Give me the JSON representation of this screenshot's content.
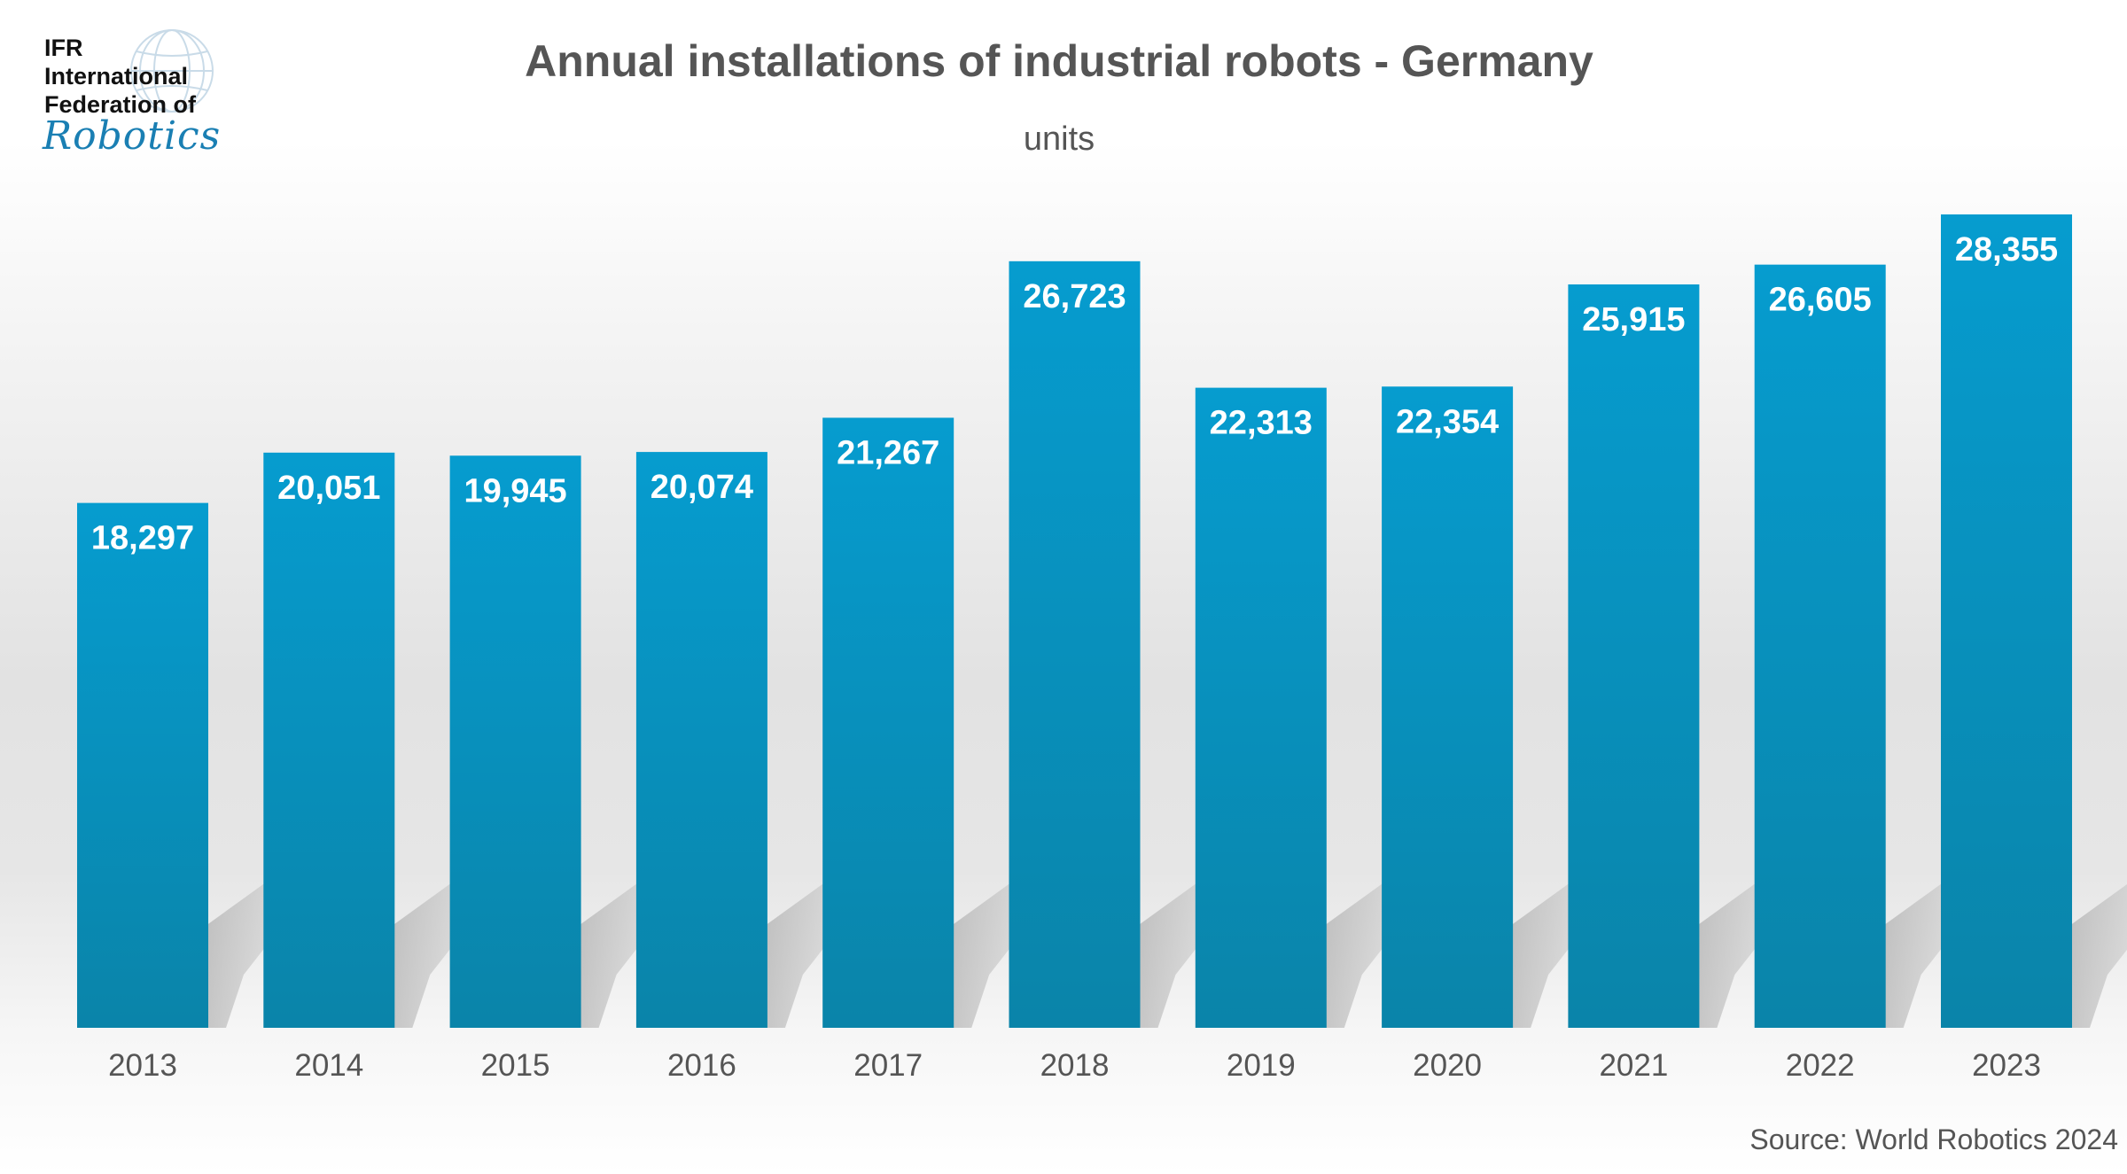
{
  "logo": {
    "line1": "IFR",
    "line2": "International",
    "line3": "Federation of",
    "line4": "Robotics"
  },
  "chart_data": {
    "type": "bar",
    "title": "Annual installations of industrial robots - Germany",
    "subtitle": "units",
    "categories": [
      "2013",
      "2014",
      "2015",
      "2016",
      "2017",
      "2018",
      "2019",
      "2020",
      "2021",
      "2022",
      "2023"
    ],
    "values": [
      18297,
      20051,
      19945,
      20074,
      21267,
      26723,
      22313,
      22354,
      25915,
      26605,
      28355
    ],
    "value_labels": [
      "18,297",
      "20,051",
      "19,945",
      "20,074",
      "21,267",
      "26,723",
      "22,313",
      "22,354",
      "25,915",
      "26,605",
      "28,355"
    ],
    "ylim": [
      0,
      28355
    ],
    "grid": false,
    "bar_color_top": "#069ccf",
    "bar_color_bottom": "#0a84a9",
    "source": "Source: World Robotics 2024"
  }
}
